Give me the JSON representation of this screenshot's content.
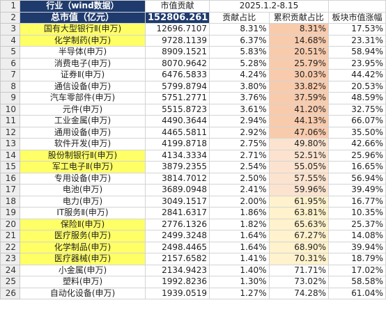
{
  "header": {
    "row1": {
      "industry_label": "行业（wind数据）",
      "cap_label": "市值贡献",
      "period_label": "2025.1.2-8.15"
    },
    "row2": {
      "total_label": "总市值（亿元）",
      "total_value": "152806.261",
      "contribution_label": "贡献占比",
      "cumulative_label": "累积贡献占比",
      "gain_label": "板块市值涨幅"
    }
  },
  "rows": [
    {
      "n": "3",
      "industry": "国有大型银行Ⅱ(申万)",
      "cap": "12696.7107",
      "pct": "8.31%",
      "cum": "8.31%",
      "gain": "17.53%",
      "highlight": true
    },
    {
      "n": "4",
      "industry": "化学制药(申万)",
      "cap": "9728.1139",
      "pct": "6.37%",
      "cum": "14.68%",
      "gain": "23.31%",
      "highlight": true
    },
    {
      "n": "5",
      "industry": "半导体(申万)",
      "cap": "8909.1521",
      "pct": "5.83%",
      "cum": "20.51%",
      "gain": "58.94%",
      "highlight": false
    },
    {
      "n": "6",
      "industry": "消费电子(申万)",
      "cap": "8070.9642",
      "pct": "5.28%",
      "cum": "25.79%",
      "gain": "23.95%",
      "highlight": false
    },
    {
      "n": "7",
      "industry": "证券Ⅱ(申万)",
      "cap": "6476.5833",
      "pct": "4.24%",
      "cum": "30.03%",
      "gain": "44.42%",
      "highlight": false
    },
    {
      "n": "8",
      "industry": "通信设备(申万)",
      "cap": "5799.8794",
      "pct": "3.80%",
      "cum": "33.82%",
      "gain": "20.53%",
      "highlight": false
    },
    {
      "n": "9",
      "industry": "汽车零部件(申万)",
      "cap": "5751.2771",
      "pct": "3.76%",
      "cum": "37.59%",
      "gain": "48.59%",
      "highlight": false
    },
    {
      "n": "10",
      "industry": "元件(申万)",
      "cap": "5515.8723",
      "pct": "3.61%",
      "cum": "41.20%",
      "gain": "32.75%",
      "highlight": false
    },
    {
      "n": "11",
      "industry": "工业金属(申万)",
      "cap": "4490.3644",
      "pct": "2.94%",
      "cum": "44.13%",
      "gain": "66.07%",
      "highlight": false
    },
    {
      "n": "12",
      "industry": "通用设备(申万)",
      "cap": "4465.5811",
      "pct": "2.92%",
      "cum": "47.06%",
      "gain": "35.50%",
      "highlight": false
    },
    {
      "n": "13",
      "industry": "软件开发(申万)",
      "cap": "4199.8718",
      "pct": "2.75%",
      "cum": "49.80%",
      "gain": "42.66%",
      "highlight": false
    },
    {
      "n": "14",
      "industry": "股份制银行Ⅱ(申万)",
      "cap": "4134.3334",
      "pct": "2.71%",
      "cum": "52.51%",
      "gain": "25.96%",
      "highlight": true
    },
    {
      "n": "15",
      "industry": "军工电子Ⅱ(申万)",
      "cap": "3879.2355",
      "pct": "2.54%",
      "cum": "55.05%",
      "gain": "16.65%",
      "highlight": true
    },
    {
      "n": "16",
      "industry": "专用设备(申万)",
      "cap": "3814.7012",
      "pct": "2.50%",
      "cum": "57.55%",
      "gain": "56.94%",
      "highlight": false
    },
    {
      "n": "17",
      "industry": "电池(申万)",
      "cap": "3689.0948",
      "pct": "2.41%",
      "cum": "59.96%",
      "gain": "39.49%",
      "highlight": false
    },
    {
      "n": "18",
      "industry": "电力(申万)",
      "cap": "3049.1517",
      "pct": "2.00%",
      "cum": "61.95%",
      "gain": "16.77%",
      "highlight": false
    },
    {
      "n": "19",
      "industry": "IT服务Ⅱ(申万)",
      "cap": "2841.6317",
      "pct": "1.86%",
      "cum": "63.81%",
      "gain": "10.35%",
      "highlight": false
    },
    {
      "n": "20",
      "industry": "保险Ⅱ(申万)",
      "cap": "2776.1326",
      "pct": "1.82%",
      "cum": "65.63%",
      "gain": "25.37%",
      "highlight": true
    },
    {
      "n": "21",
      "industry": "医疗服务(申万)",
      "cap": "2499.3248",
      "pct": "1.64%",
      "cum": "67.27%",
      "gain": "14.08%",
      "highlight": true
    },
    {
      "n": "22",
      "industry": "化学制品(申万)",
      "cap": "2498.4465",
      "pct": "1.64%",
      "cum": "68.90%",
      "gain": "39.94%",
      "highlight": true
    },
    {
      "n": "23",
      "industry": "医疗器械(申万)",
      "cap": "2157.6582",
      "pct": "1.41%",
      "cum": "70.31%",
      "gain": "18.79%",
      "highlight": true
    },
    {
      "n": "24",
      "industry": "小金属(申万)",
      "cap": "2134.9423",
      "pct": "1.40%",
      "cum": "71.71%",
      "gain": "17.02%",
      "highlight": false
    },
    {
      "n": "25",
      "industry": "塑料(申万)",
      "cap": "1992.8236",
      "pct": "1.30%",
      "cum": "73.02%",
      "gain": "58.58%",
      "highlight": false
    },
    {
      "n": "26",
      "industry": "自动化设备(申万)",
      "cap": "1939.0519",
      "pct": "1.27%",
      "cum": "74.28%",
      "gain": "61.04%",
      "highlight": false
    }
  ],
  "row_numbers_header": [
    "1",
    "2"
  ],
  "colors": {
    "header_navy": "#1f3b6e",
    "highlight_yellow": "#ffff66",
    "cum_orange": "#f8cbad",
    "cum_light_orange": "#fbe3cf",
    "cum_pale": "#fff2cc"
  }
}
